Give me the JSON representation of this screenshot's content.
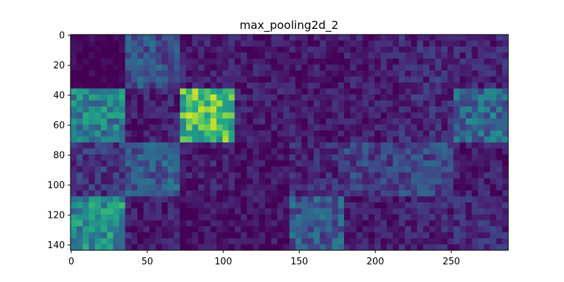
{
  "chart_data": {
    "type": "heatmap",
    "title": "max_pooling2d_2",
    "xlabel": "",
    "ylabel": "",
    "xlim": [
      -0.5,
      287.5
    ],
    "ylim": [
      143.5,
      -0.5
    ],
    "x_ticks": [
      0,
      50,
      100,
      150,
      200,
      250
    ],
    "y_ticks": [
      0,
      20,
      40,
      60,
      80,
      100,
      120,
      140
    ],
    "grid": false,
    "colormap": "viridis",
    "tile_grid": {
      "rows": 4,
      "cols": 8,
      "tile_size": 36
    },
    "tile_mean_activation": [
      [
        0.0,
        0.25,
        0.08,
        0.07,
        0.07,
        0.08,
        0.12,
        0.1
      ],
      [
        0.45,
        0.1,
        0.7,
        0.08,
        0.08,
        0.08,
        0.12,
        0.35
      ],
      [
        0.15,
        0.28,
        0.08,
        0.05,
        0.12,
        0.2,
        0.22,
        0.08
      ],
      [
        0.5,
        0.08,
        0.04,
        0.05,
        0.28,
        0.07,
        0.1,
        0.12
      ]
    ]
  }
}
